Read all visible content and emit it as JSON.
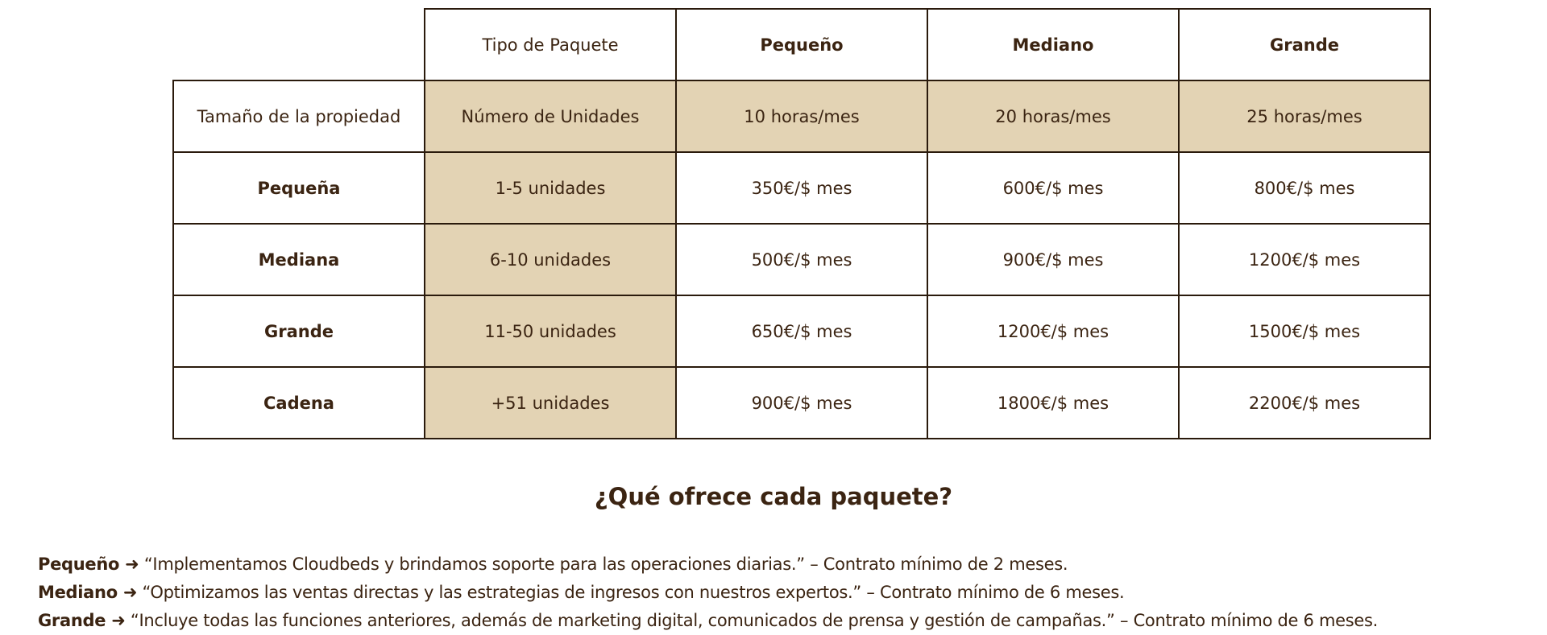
{
  "table": {
    "package_label": "Tipo de Paquete",
    "packages": [
      "Pequeño",
      "Mediano",
      "Grande"
    ],
    "size_label": "Tamaño de la propiedad",
    "units_label": "Número de Unidades",
    "hours": [
      "10 horas/mes",
      "20 horas/mes",
      "25 horas/mes"
    ],
    "rows": [
      {
        "size": "Pequeña",
        "units": "1-5 unidades",
        "prices": [
          "350€/$ mes",
          "600€/$ mes",
          "800€/$ mes"
        ]
      },
      {
        "size": "Mediana",
        "units": "6-10 unidades",
        "prices": [
          "500€/$ mes",
          "900€/$ mes",
          "1200€/$ mes"
        ]
      },
      {
        "size": "Grande",
        "units": "11-50 unidades",
        "prices": [
          "650€/$ mes",
          "1200€/$ mes",
          "1500€/$ mes"
        ]
      },
      {
        "size": "Cadena",
        "units": "+51 unidades",
        "prices": [
          "900€/$ mes",
          "1800€/$ mes",
          "2200€/$ mes"
        ]
      }
    ]
  },
  "offer": {
    "title": "¿Qué ofrece cada paquete?",
    "items": [
      {
        "label": "Pequeño ➜",
        "text": "“Implementamos Cloudbeds y brindamos soporte para las operaciones diarias.” – Contrato mínimo de 2 meses."
      },
      {
        "label": "Mediano ➜",
        "text": "“Optimizamos las ventas directas y las estrategias de ingresos con nuestros expertos.” – Contrato mínimo de 6 meses."
      },
      {
        "label": "Grande ➜",
        "text": "“Incluye todas las funciones anteriores, además de marketing digital, comunicados de prensa y gestión de campañas.” – Contrato mínimo de 6 meses."
      }
    ]
  }
}
